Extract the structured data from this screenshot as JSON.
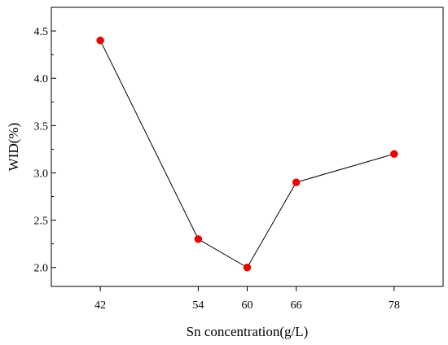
{
  "chart_data": {
    "type": "line",
    "xlabel": "Sn concentration(g/L)",
    "ylabel": "WID(%)",
    "xlim": [
      36,
      84
    ],
    "ylim": [
      1.8,
      4.75
    ],
    "x_ticks": [
      42,
      54,
      60,
      66,
      78
    ],
    "y_ticks": [
      2.0,
      2.5,
      3.0,
      3.5,
      4.0,
      4.5
    ],
    "x_tick_labels": [
      "42",
      "54",
      "60",
      "66",
      "78"
    ],
    "y_tick_labels": [
      "2.0",
      "2.5",
      "3.0",
      "3.5",
      "4.0",
      "4.5"
    ],
    "grid": false,
    "series": [
      {
        "x": [
          42,
          54,
          60,
          66,
          78
        ],
        "y": [
          4.4,
          2.3,
          2.0,
          2.9,
          3.2
        ],
        "line_color": "#000000",
        "marker_color": "#ee0000"
      }
    ]
  }
}
